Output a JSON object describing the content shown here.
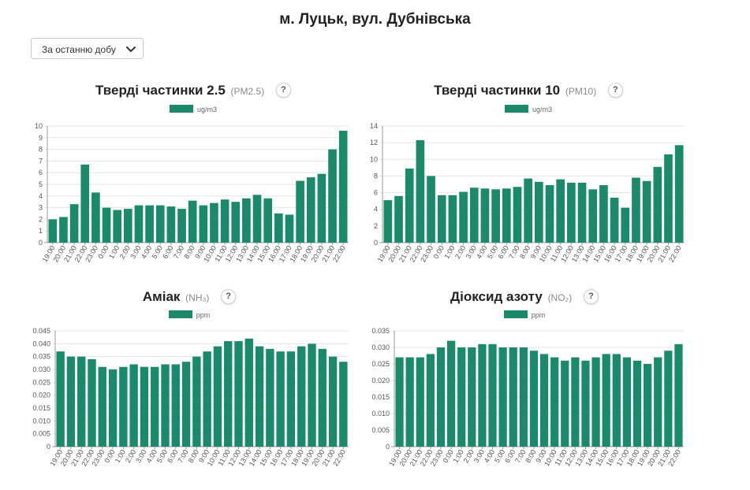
{
  "page": {
    "title": "м. Луцьк, вул. Дубнівська"
  },
  "period_select": {
    "value": "За останню добу"
  },
  "colors": {
    "bar": "#1a8a6a",
    "grid": "#e6e6e6",
    "axis": "#999999"
  },
  "chart_data": [
    {
      "type": "bar",
      "title": "Тверді частинки 2.5",
      "code": "(PM2.5)",
      "help": "?",
      "legend": "ug/m3",
      "categories": [
        "19:00",
        "20:00",
        "21:00",
        "22:00",
        "23:00",
        "0:00",
        "1:00",
        "2:00",
        "3:00",
        "4:00",
        "5:00",
        "6:00",
        "7:00",
        "8:00",
        "9:00",
        "10:00",
        "11:00",
        "12:00",
        "13:00",
        "14:00",
        "15:00",
        "16:00",
        "17:00",
        "18:00",
        "19:00",
        "20:00",
        "21:00",
        "22:00"
      ],
      "values": [
        2.0,
        2.2,
        3.3,
        6.7,
        4.3,
        3.0,
        2.8,
        2.9,
        3.2,
        3.2,
        3.2,
        3.1,
        2.9,
        3.6,
        3.2,
        3.4,
        3.7,
        3.5,
        3.8,
        4.1,
        3.8,
        2.5,
        2.4,
        5.3,
        5.6,
        5.9,
        8.0,
        9.6
      ],
      "ylim": [
        0,
        10
      ],
      "yticks": [
        "0",
        "1",
        "2",
        "3",
        "4",
        "5",
        "6",
        "7",
        "8",
        "9",
        "10"
      ]
    },
    {
      "type": "bar",
      "title": "Тверді частинки 10",
      "code": "(PM10)",
      "help": "?",
      "legend": "ug/m3",
      "categories": [
        "19:00",
        "20:00",
        "21:00",
        "22:00",
        "23:00",
        "0:00",
        "1:00",
        "2:00",
        "3:00",
        "4:00",
        "5:00",
        "6:00",
        "7:00",
        "8:00",
        "9:00",
        "10:00",
        "11:00",
        "12:00",
        "13:00",
        "14:00",
        "15:00",
        "16:00",
        "17:00",
        "18:00",
        "19:00",
        "20:00",
        "21:00",
        "22:00"
      ],
      "values": [
        5.1,
        5.6,
        8.9,
        12.3,
        8.0,
        5.7,
        5.7,
        6.1,
        6.6,
        6.5,
        6.4,
        6.5,
        6.7,
        7.7,
        7.3,
        6.9,
        7.6,
        7.2,
        7.2,
        6.4,
        6.9,
        5.4,
        4.2,
        7.8,
        7.4,
        9.1,
        10.6,
        11.7
      ],
      "ylim": [
        0,
        14
      ],
      "yticks": [
        "0",
        "2",
        "4",
        "6",
        "8",
        "10",
        "12",
        "14"
      ]
    },
    {
      "type": "bar",
      "title": "Аміак",
      "code": "(NH₃)",
      "help": "?",
      "legend": "ppm",
      "categories": [
        "19:00",
        "20:00",
        "21:00",
        "22:00",
        "23:00",
        "0:00",
        "1:00",
        "2:00",
        "3:00",
        "4:00",
        "5:00",
        "6:00",
        "7:00",
        "8:00",
        "9:00",
        "10:00",
        "11:00",
        "12:00",
        "13:00",
        "14:00",
        "15:00",
        "16:00",
        "17:00",
        "18:00",
        "19:00",
        "20:00",
        "21:00",
        "22:00"
      ],
      "values": [
        0.037,
        0.035,
        0.035,
        0.034,
        0.031,
        0.03,
        0.031,
        0.032,
        0.031,
        0.031,
        0.032,
        0.032,
        0.033,
        0.035,
        0.037,
        0.039,
        0.041,
        0.041,
        0.042,
        0.039,
        0.038,
        0.037,
        0.037,
        0.039,
        0.04,
        0.038,
        0.035,
        0.033
      ],
      "ylim": [
        0,
        0.045
      ],
      "yticks": [
        "0",
        "0.005",
        "0.010",
        "0.015",
        "0.020",
        "0.025",
        "0.030",
        "0.035",
        "0.040",
        "0.045"
      ]
    },
    {
      "type": "bar",
      "title": "Діоксид азоту",
      "code": "(NO₂)",
      "help": "?",
      "legend": "ppm",
      "categories": [
        "19:00",
        "20:00",
        "21:00",
        "22:00",
        "23:00",
        "0:00",
        "1:00",
        "2:00",
        "3:00",
        "4:00",
        "5:00",
        "6:00",
        "7:00",
        "8:00",
        "9:00",
        "10:00",
        "11:00",
        "12:00",
        "13:00",
        "14:00",
        "15:00",
        "16:00",
        "17:00",
        "18:00",
        "19:00",
        "20:00",
        "21:00",
        "22:00"
      ],
      "values": [
        0.027,
        0.027,
        0.027,
        0.028,
        0.03,
        0.032,
        0.03,
        0.03,
        0.031,
        0.031,
        0.03,
        0.03,
        0.03,
        0.029,
        0.028,
        0.027,
        0.026,
        0.027,
        0.026,
        0.027,
        0.028,
        0.028,
        0.027,
        0.026,
        0.025,
        0.027,
        0.029,
        0.031
      ],
      "ylim": [
        0,
        0.035
      ],
      "yticks": [
        "0",
        "0.005",
        "0.010",
        "0.015",
        "0.020",
        "0.025",
        "0.030",
        "0.035"
      ]
    }
  ]
}
